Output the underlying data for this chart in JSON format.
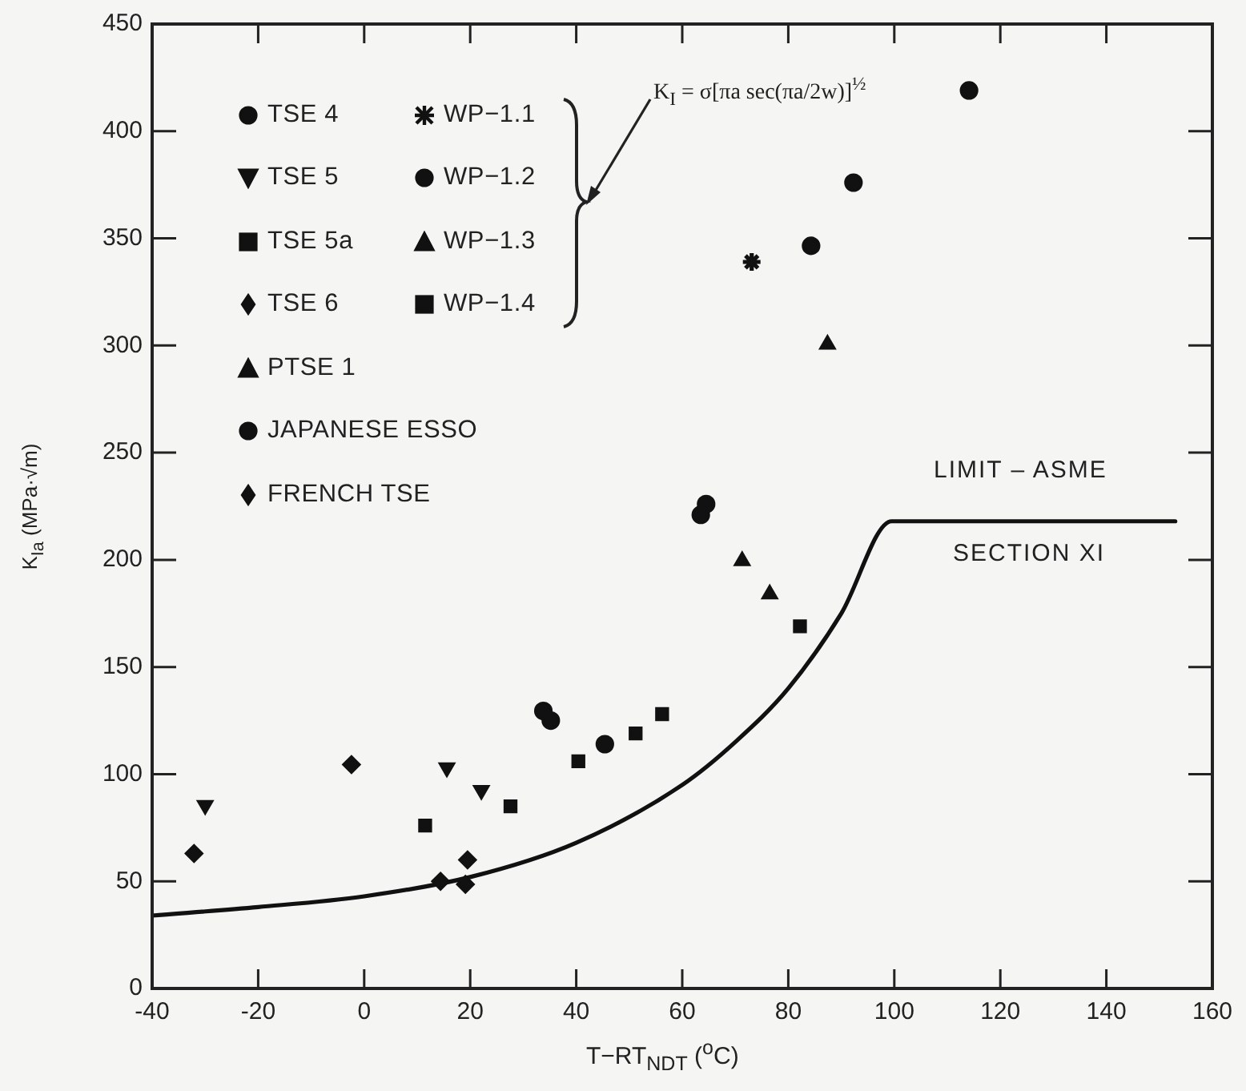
{
  "chart_data": {
    "type": "scatter",
    "xlabel": "T−RT$_{NDT}$ ($^{o}$C)",
    "ylabel": "K$_{Ia}$ (MPa·√m)",
    "xlim": [
      -40,
      160
    ],
    "xticks": [
      -40,
      -20,
      0,
      20,
      40,
      60,
      80,
      100,
      120,
      140,
      160
    ],
    "ylim": [
      0,
      450
    ],
    "yticks": [
      0,
      50,
      100,
      150,
      200,
      250,
      300,
      350,
      400,
      450
    ],
    "grid": false,
    "legend": "top left",
    "series": [
      {
        "name": "TSE 4",
        "color": "#111111",
        "marker": "circle",
        "x": [
          33.8,
          35.2,
          45.4
        ],
        "values": [
          129.5,
          125,
          114
        ]
      },
      {
        "name": "TSE 5",
        "color": "#111111",
        "marker": "triangle-down",
        "x": [
          -30,
          15.6,
          22.1
        ],
        "values": [
          85.5,
          103,
          92.5
        ]
      },
      {
        "name": "TSE 5a",
        "color": "#111111",
        "marker": "square",
        "x": [
          11.5,
          27.6,
          40.4,
          56.2
        ],
        "values": [
          76,
          85,
          106,
          128
        ]
      },
      {
        "name": "TSE 6",
        "color": "#111111",
        "marker": "diamond",
        "x": [
          -32.1,
          -2.4
        ],
        "values": [
          63,
          104.5
        ]
      },
      {
        "name": "PTSE 1",
        "color": "#111111",
        "marker": "triangle",
        "x": [
          71.3,
          87.4
        ],
        "values": [
          199.5,
          300.5
        ]
      },
      {
        "name": "JAPANESE ESSO",
        "color": "#111111",
        "marker": "circle",
        "x": [
          63.5,
          64.5,
          92.3
        ],
        "values": [
          221,
          226,
          376
        ]
      },
      {
        "name": "FRENCH TSE",
        "color": "#111111",
        "marker": "diamond",
        "x": [
          14.4,
          19.1,
          19.5
        ],
        "values": [
          50,
          48.6,
          60
        ]
      },
      {
        "name": "WP−1.1",
        "color": "#111111",
        "marker": "cross",
        "x": [
          73.1
        ],
        "values": [
          339
        ]
      },
      {
        "name": "WP−1.2",
        "color": "#111111",
        "marker": "circle",
        "x": [
          84.3,
          114.1
        ],
        "values": [
          346.5,
          419
        ]
      },
      {
        "name": "WP−1.3",
        "color": "#111111",
        "marker": "triangle",
        "x": [
          76.5
        ],
        "values": [
          184
        ]
      },
      {
        "name": "WP−1.4",
        "color": "#111111",
        "marker": "square",
        "x": [
          51.2,
          82.2
        ],
        "values": [
          119,
          169
        ]
      },
      {
        "type": "line",
        "color": "#111111",
        "marker": "none",
        "x": [
          -40,
          -20,
          0,
          20,
          40,
          60,
          70,
          80,
          90,
          99.5,
          153
        ],
        "values": [
          34,
          38,
          43,
          52,
          68,
          95,
          115,
          140,
          175,
          218,
          218
        ]
      }
    ],
    "annotations": [
      "K$_{I}$ = σ[πa sec(πa/2w)]$^{½}$",
      "LIMIT – ASME",
      "SECTION XI"
    ]
  }
}
